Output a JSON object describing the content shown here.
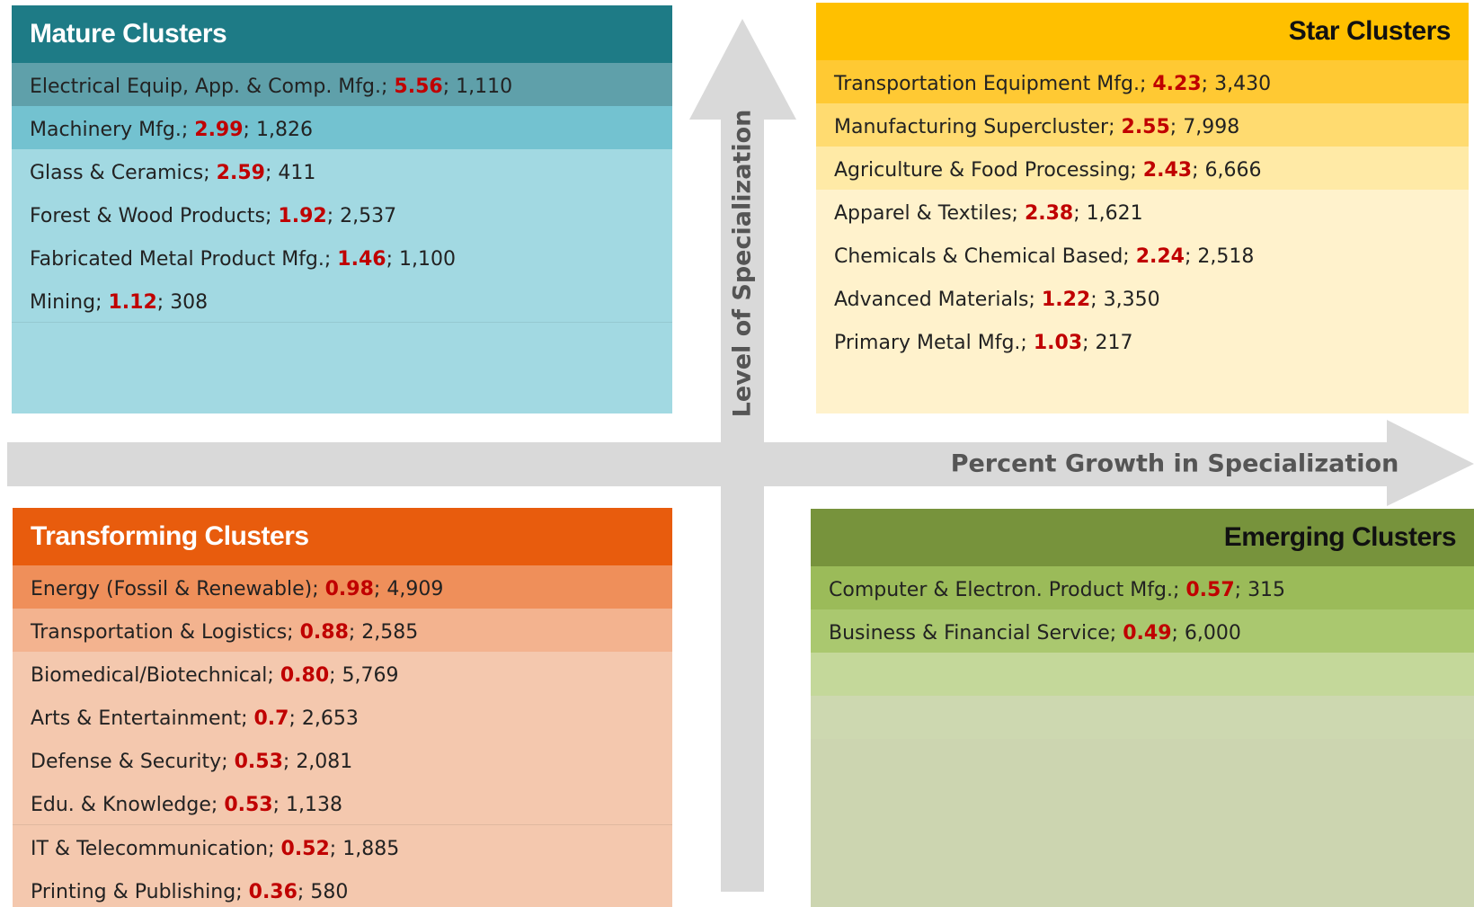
{
  "separator": ";",
  "axes": {
    "vertical": "Level of Specialization",
    "horizontal": "Percent Growth in Specialization"
  },
  "quadrants": [
    {
      "title": "Mature Clusters",
      "items": [
        {
          "name": "Electrical Equip, App. & Comp. Mfg.",
          "value": "5.56",
          "jobs": "1,110"
        },
        {
          "name": "Machinery Mfg.",
          "value": "2.99",
          "jobs": "1,826"
        },
        {
          "name": "Glass & Ceramics",
          "value": "2.59",
          "jobs": "411"
        },
        {
          "name": "Forest & Wood Products",
          "value": "1.92",
          "jobs": "2,537"
        },
        {
          "name": "Fabricated Metal Product Mfg.",
          "value": "1.46",
          "jobs": "1,100"
        },
        {
          "name": "Mining",
          "value": "1.12",
          "jobs": "308"
        }
      ]
    },
    {
      "title": "Star Clusters",
      "items": [
        {
          "name": "Transportation Equipment Mfg.",
          "value": "4.23",
          "jobs": "3,430"
        },
        {
          "name": "Manufacturing Supercluster",
          "value": "2.55",
          "jobs": "7,998"
        },
        {
          "name": "Agriculture & Food Processing",
          "value": "2.43",
          "jobs": "6,666"
        },
        {
          "name": "Apparel & Textiles",
          "value": "2.38",
          "jobs": "1,621"
        },
        {
          "name": "Chemicals & Chemical Based",
          "value": "2.24",
          "jobs": "2,518"
        },
        {
          "name": "Advanced Materials",
          "value": "1.22",
          "jobs": "3,350"
        },
        {
          "name": "Primary Metal Mfg.",
          "value": "1.03",
          "jobs": "217"
        }
      ]
    },
    {
      "title": "Transforming Clusters",
      "items": [
        {
          "name": "Energy (Fossil & Renewable)",
          "value": "0.98",
          "jobs": "4,909"
        },
        {
          "name": "Transportation & Logistics",
          "value": "0.88",
          "jobs": "2,585"
        },
        {
          "name": "Biomedical/Biotechnical",
          "value": "0.80",
          "jobs": "5,769"
        },
        {
          "name": "Arts & Entertainment",
          "value": "0.7",
          "jobs": "2,653"
        },
        {
          "name": "Defense & Security",
          "value": "0.53",
          "jobs": "2,081"
        },
        {
          "name": "Edu. & Knowledge",
          "value": "0.53",
          "jobs": "1,138"
        },
        {
          "name": "IT & Telecommunication",
          "value": "0.52",
          "jobs": "1,885"
        },
        {
          "name": "Printing & Publishing",
          "value": "0.36",
          "jobs": "580"
        }
      ]
    },
    {
      "title": "Emerging Clusters",
      "items": [
        {
          "name": "Computer & Electron. Product Mfg.",
          "value": "0.57",
          "jobs": "315"
        },
        {
          "name": "Business & Financial Service",
          "value": "0.49",
          "jobs": "6,000"
        }
      ]
    }
  ]
}
